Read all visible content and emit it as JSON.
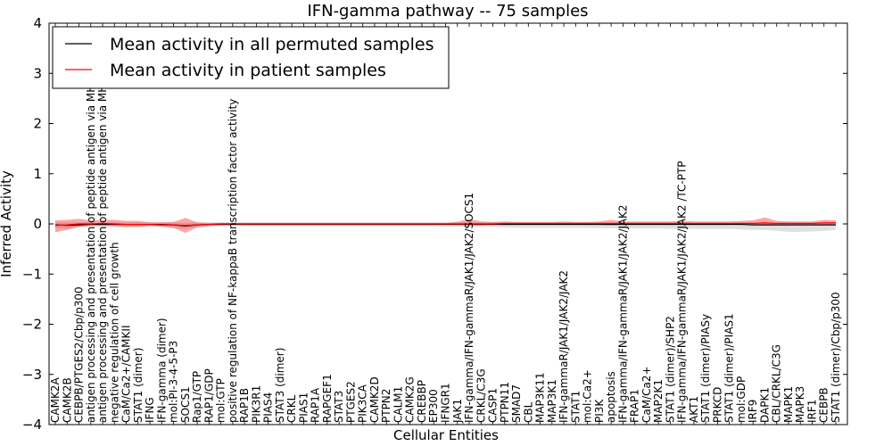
{
  "chart_data": {
    "type": "line",
    "title": "IFN-gamma pathway -- 75 samples",
    "xlabel": "Cellular Entities",
    "ylabel": "Inferred Activity",
    "ylim": [
      -4,
      4
    ],
    "yticks": [
      -4,
      -3,
      -2,
      -1,
      0,
      1,
      2,
      3,
      4
    ],
    "ytick_labels": [
      "−4",
      "−3",
      "−2",
      "−1",
      "0",
      "1",
      "2",
      "3",
      "4"
    ],
    "grid": false,
    "legend_position": "top-left",
    "categories": [
      "CAMK2A",
      "CAMK2B",
      "CEBPB/PTGES2/Cbp/p300",
      "antigen processing and presentation of peptide antigen via MHC class I",
      "antigen processing and presentation of peptide antigen via MHC class II",
      "negative regulation of cell growth",
      "CaM/Ca2+/CAMKII",
      "STAT1 (dimer)",
      "IFNG",
      "IFN-gamma (dimer)",
      "mol:PI-3-4-5-P3",
      "SOCS1",
      "Rap1/GTP",
      "RAP1/GDP",
      "mol:GTP",
      "positive regulation of NF-kappaB transcription factor activity",
      "RAP1B",
      "PIK3R1",
      "PIAS4",
      "STAT3 (dimer)",
      "CRKL",
      "PIAS1",
      "RAP1A",
      "RAPGEF1",
      "STAT3",
      "PTGES2",
      "PIK3CA",
      "CAMK2D",
      "PTPN2",
      "CALM1",
      "CAMK2G",
      "CREBBP",
      "EP300",
      "IFNGR1",
      "JAK1",
      "IFN-gamma/IFN-gammaR/JAK1/JAK2/SOCS1",
      "CRKL/C3G",
      "CASP1",
      "PTPN11",
      "SMAD7",
      "CBL",
      "MAP3K11",
      "MAP3K1",
      "IFN-gammaR/JAK1/JAK2/JAK2",
      "STAT1",
      "mol:Ca2+",
      "PI3K",
      "apoptosis",
      "IFN-gamma/IFN-gammaR/JAK1/JAK2/JAK2",
      "FRAP1",
      "CaM/Ca2+",
      "MAP2K1",
      "STAT1 (dimer)/SHP2",
      "IFN-gamma/IFN-gammaR/JAK1/JAK2/JAK2  /TC-PTP",
      "AKT1",
      "STAT1 (dimer)/PIASy",
      "PRKCD",
      "STAT1 (dimer)/PIAS1",
      "mol:GDP",
      "IRF9",
      "DAPK1",
      "CBL/CRKL/C3G",
      "MAPK1",
      "MAPK3",
      "IRF1",
      "CEBPB",
      "STAT1 (dimer)/Cbp/p300"
    ],
    "series": [
      {
        "name": "Mean activity in all permuted samples",
        "color": "#000000",
        "values": [
          -0.02,
          -0.03,
          -0.02,
          -0.01,
          -0.01,
          -0.01,
          -0.01,
          -0.01,
          -0.01,
          -0.01,
          -0.02,
          -0.04,
          -0.02,
          -0.01,
          -0.01,
          -0.01,
          -0.01,
          -0.01,
          -0.01,
          -0.01,
          -0.01,
          -0.01,
          -0.01,
          -0.01,
          -0.01,
          -0.01,
          -0.01,
          -0.01,
          -0.01,
          -0.01,
          -0.01,
          -0.01,
          -0.01,
          -0.01,
          -0.01,
          -0.01,
          -0.01,
          -0.01,
          -0.01,
          -0.01,
          -0.01,
          -0.01,
          -0.01,
          -0.01,
          -0.01,
          -0.01,
          -0.01,
          -0.01,
          -0.01,
          -0.01,
          -0.01,
          -0.01,
          -0.01,
          -0.01,
          -0.01,
          -0.01,
          -0.01,
          -0.01,
          -0.01,
          -0.02,
          -0.02,
          -0.02,
          -0.02,
          -0.02,
          -0.02,
          -0.02,
          -0.02
        ],
        "band_lower": [
          -0.08,
          -0.1,
          -0.07,
          -0.05,
          -0.05,
          -0.05,
          -0.06,
          -0.06,
          -0.05,
          -0.05,
          -0.08,
          -0.1,
          -0.07,
          -0.05,
          -0.05,
          -0.04,
          -0.05,
          -0.05,
          -0.05,
          -0.05,
          -0.05,
          -0.05,
          -0.05,
          -0.05,
          -0.05,
          -0.05,
          -0.05,
          -0.05,
          -0.05,
          -0.05,
          -0.05,
          -0.05,
          -0.05,
          -0.06,
          -0.06,
          -0.06,
          -0.06,
          -0.06,
          -0.07,
          -0.08,
          -0.08,
          -0.08,
          -0.08,
          -0.08,
          -0.08,
          -0.08,
          -0.09,
          -0.09,
          -0.09,
          -0.09,
          -0.09,
          -0.09,
          -0.1,
          -0.1,
          -0.1,
          -0.1,
          -0.1,
          -0.1,
          -0.11,
          -0.12,
          -0.12,
          -0.14,
          -0.16,
          -0.16,
          -0.15,
          -0.14,
          -0.12
        ],
        "band_upper": [
          0.03,
          0.03,
          0.03,
          0.03,
          0.03,
          0.03,
          0.03,
          0.03,
          0.03,
          0.03,
          0.03,
          0.02,
          0.03,
          0.03,
          0.03,
          0.03,
          0.03,
          0.03,
          0.03,
          0.03,
          0.03,
          0.03,
          0.03,
          0.03,
          0.03,
          0.03,
          0.03,
          0.03,
          0.03,
          0.03,
          0.03,
          0.03,
          0.03,
          0.03,
          0.03,
          0.03,
          0.03,
          0.03,
          0.03,
          0.03,
          0.03,
          0.03,
          0.03,
          0.03,
          0.03,
          0.03,
          0.03,
          0.03,
          0.03,
          0.03,
          0.03,
          0.03,
          0.03,
          0.03,
          0.03,
          0.03,
          0.03,
          0.03,
          0.03,
          0.03,
          0.03,
          0.03,
          0.03,
          0.03,
          0.03,
          0.03,
          0.03
        ]
      },
      {
        "name": "Mean activity in patient samples",
        "color": "#ff0000",
        "values": [
          -0.03,
          -0.02,
          0.0,
          0.0,
          0.01,
          0.0,
          -0.01,
          -0.01,
          -0.01,
          -0.02,
          -0.02,
          -0.03,
          -0.02,
          -0.01,
          0.0,
          0.0,
          0.0,
          0.0,
          0.0,
          0.0,
          0.0,
          0.0,
          0.0,
          0.0,
          0.0,
          0.0,
          0.0,
          0.0,
          0.0,
          0.0,
          0.0,
          0.0,
          0.0,
          0.0,
          0.0,
          0.0,
          0.0,
          0.0,
          0.01,
          0.01,
          0.01,
          0.01,
          0.01,
          0.01,
          0.01,
          0.01,
          0.01,
          0.01,
          0.01,
          0.01,
          0.01,
          0.01,
          0.01,
          0.01,
          0.01,
          0.01,
          0.01,
          0.01,
          0.01,
          0.01,
          0.02,
          0.01,
          0.01,
          0.01,
          0.01,
          0.02,
          0.02
        ],
        "band_lower": [
          -0.17,
          -0.12,
          -0.06,
          -0.04,
          -0.04,
          -0.05,
          -0.06,
          -0.06,
          -0.04,
          -0.06,
          -0.08,
          -0.18,
          -0.07,
          -0.04,
          -0.03,
          -0.02,
          -0.02,
          -0.02,
          -0.02,
          -0.02,
          -0.02,
          -0.02,
          -0.02,
          -0.02,
          -0.02,
          -0.02,
          -0.02,
          -0.02,
          -0.02,
          -0.02,
          -0.02,
          -0.02,
          -0.02,
          -0.02,
          -0.02,
          -0.03,
          -0.03,
          -0.02,
          -0.02,
          -0.02,
          -0.02,
          -0.02,
          -0.02,
          -0.02,
          -0.02,
          -0.02,
          -0.02,
          -0.03,
          -0.02,
          -0.02,
          -0.02,
          -0.02,
          -0.02,
          -0.02,
          -0.02,
          -0.02,
          -0.02,
          -0.02,
          -0.02,
          -0.02,
          -0.03,
          -0.02,
          -0.02,
          -0.02,
          -0.02,
          -0.02,
          -0.02
        ],
        "band_upper": [
          0.07,
          0.08,
          0.1,
          0.07,
          0.08,
          0.08,
          0.06,
          0.06,
          0.03,
          0.03,
          0.04,
          0.12,
          0.03,
          0.02,
          0.02,
          0.02,
          0.02,
          0.02,
          0.02,
          0.02,
          0.02,
          0.02,
          0.02,
          0.02,
          0.02,
          0.02,
          0.02,
          0.02,
          0.02,
          0.02,
          0.02,
          0.02,
          0.02,
          0.02,
          0.04,
          0.1,
          0.05,
          0.04,
          0.05,
          0.04,
          0.04,
          0.04,
          0.04,
          0.05,
          0.04,
          0.04,
          0.05,
          0.08,
          0.05,
          0.05,
          0.05,
          0.05,
          0.05,
          0.06,
          0.05,
          0.05,
          0.05,
          0.05,
          0.06,
          0.07,
          0.13,
          0.06,
          0.05,
          0.05,
          0.05,
          0.08,
          0.07
        ]
      }
    ]
  }
}
